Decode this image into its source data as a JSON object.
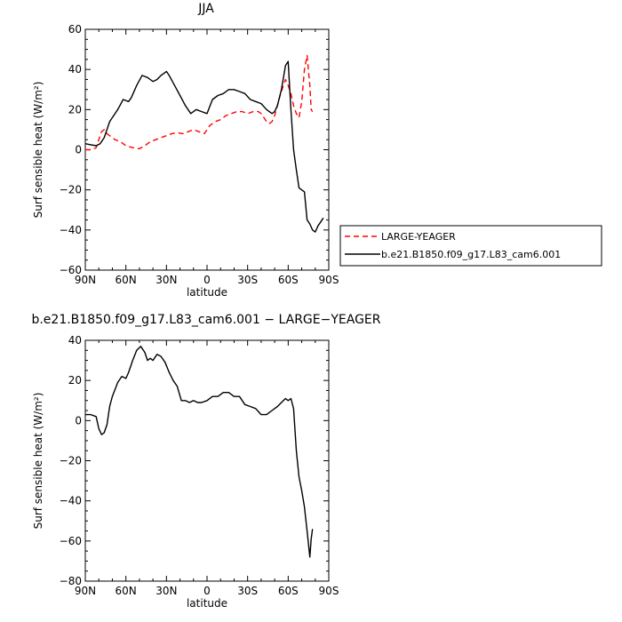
{
  "chart_data": [
    {
      "type": "line",
      "title": "JJA",
      "xlabel": "latitude",
      "ylabel": "Surf sensible heat (W/m²)",
      "ylim": [
        -60,
        60
      ],
      "xlim": [
        -90,
        90
      ],
      "x_ticks": [
        -90,
        -60,
        -30,
        0,
        30,
        60,
        90
      ],
      "x_tick_labels": [
        "90N",
        "60N",
        "30N",
        "0",
        "30S",
        "60S",
        "90S"
      ],
      "y_ticks": [
        -60,
        -40,
        -20,
        0,
        20,
        40,
        60
      ],
      "y_tick_labels": [
        "−60",
        "−40",
        "−20",
        "0",
        "20",
        "40",
        "60"
      ],
      "legend_position": "right, outside plot",
      "series": [
        {
          "name": "LARGE-YEAGER",
          "color": "#ff0000",
          "dash": "dashed",
          "x": [
            -90,
            -85,
            -82,
            -80,
            -78,
            -76,
            -74,
            -72,
            -68,
            -64,
            -60,
            -55,
            -50,
            -46,
            -42,
            -38,
            -34,
            -30,
            -26,
            -22,
            -18,
            -14,
            -10,
            -6,
            -2,
            0,
            2,
            6,
            10,
            14,
            18,
            22,
            26,
            30,
            34,
            38,
            40,
            44,
            46,
            48,
            50,
            52,
            54,
            56,
            58,
            60,
            62,
            64,
            66,
            68,
            70,
            72,
            74,
            76,
            77,
            78
          ],
          "y": [
            0,
            0,
            1,
            5,
            9,
            10,
            8,
            7,
            5,
            4,
            2,
            1,
            0.5,
            2,
            4,
            5,
            6,
            7,
            8,
            8.5,
            8,
            9,
            10,
            9,
            8,
            10,
            12,
            14,
            15,
            17,
            18,
            19,
            19,
            18,
            19,
            19,
            18,
            14,
            13,
            14,
            17,
            22,
            27,
            31,
            35,
            32,
            28,
            22,
            18,
            16,
            24,
            40,
            47,
            32,
            20,
            19
          ]
        },
        {
          "name": "b.e21.B1850.f09_g17.L83_cam6.001",
          "color": "#000000",
          "dash": "solid",
          "x": [
            -90,
            -86,
            -82,
            -79,
            -76,
            -72,
            -70,
            -66,
            -62,
            -58,
            -56,
            -52,
            -48,
            -44,
            -42,
            -40,
            -37,
            -34,
            -30,
            -28,
            -24,
            -20,
            -16,
            -12,
            -8,
            -4,
            0,
            4,
            8,
            12,
            16,
            20,
            24,
            28,
            32,
            36,
            40,
            44,
            48,
            50,
            52,
            55,
            58,
            60,
            62,
            64,
            66,
            68,
            70,
            72,
            74,
            76,
            78,
            80,
            82,
            84,
            86
          ],
          "y": [
            3,
            2.5,
            2,
            3,
            6,
            14,
            16,
            20,
            25,
            24,
            26,
            32,
            37,
            36,
            35,
            34,
            35,
            37,
            39,
            37,
            32,
            27,
            22,
            18,
            20,
            19,
            18,
            25,
            27,
            28,
            30,
            30,
            29,
            28,
            25,
            24,
            23,
            20,
            18,
            19,
            22,
            30,
            42,
            44,
            20,
            0,
            -10,
            -19,
            -20,
            -21,
            -35,
            -37,
            -40,
            -41,
            -38,
            -36,
            -34
          ]
        }
      ]
    },
    {
      "type": "line",
      "title": "b.e21.B1850.f09_g17.L83_cam6.001 − LARGE−YEAGER",
      "xlabel": "latitude",
      "ylabel": "Surf sensible heat (W/m²)",
      "ylim": [
        -80,
        40
      ],
      "xlim": [
        -90,
        90
      ],
      "x_ticks": [
        -90,
        -60,
        -30,
        0,
        30,
        60,
        90
      ],
      "x_tick_labels": [
        "90N",
        "60N",
        "30N",
        "0",
        "30S",
        "60S",
        "90S"
      ],
      "y_ticks": [
        -80,
        -60,
        -40,
        -20,
        0,
        20,
        40
      ],
      "y_tick_labels": [
        "−80",
        "−60",
        "−40",
        "−20",
        "0",
        "20",
        "40"
      ],
      "series": [
        {
          "color": "#000000",
          "dash": "solid",
          "x": [
            -90,
            -86,
            -82,
            -80,
            -78,
            -76,
            -74,
            -72,
            -70,
            -66,
            -63,
            -60,
            -58,
            -55,
            -52,
            -49,
            -46,
            -44,
            -42,
            -40,
            -37,
            -34,
            -31,
            -28,
            -25,
            -22,
            -19,
            -16,
            -13,
            -10,
            -7,
            -4,
            0,
            4,
            8,
            12,
            16,
            20,
            24,
            28,
            32,
            36,
            40,
            44,
            48,
            52,
            55,
            58,
            60,
            62,
            64,
            66,
            68,
            70,
            72,
            74,
            76,
            77,
            78
          ],
          "y": [
            3,
            3,
            2,
            -4,
            -7,
            -6,
            -2,
            7,
            12,
            19,
            22,
            21,
            24,
            30,
            35,
            37,
            34,
            30,
            31,
            30,
            33,
            32,
            29,
            24,
            20,
            17,
            10,
            10,
            9,
            10,
            9,
            9,
            10,
            12,
            12,
            14,
            14,
            12,
            12,
            8,
            7,
            6,
            3,
            3,
            5,
            7,
            9,
            11,
            10,
            11,
            6,
            -15,
            -28,
            -35,
            -43,
            -55,
            -68,
            -59,
            -54
          ]
        }
      ]
    }
  ]
}
